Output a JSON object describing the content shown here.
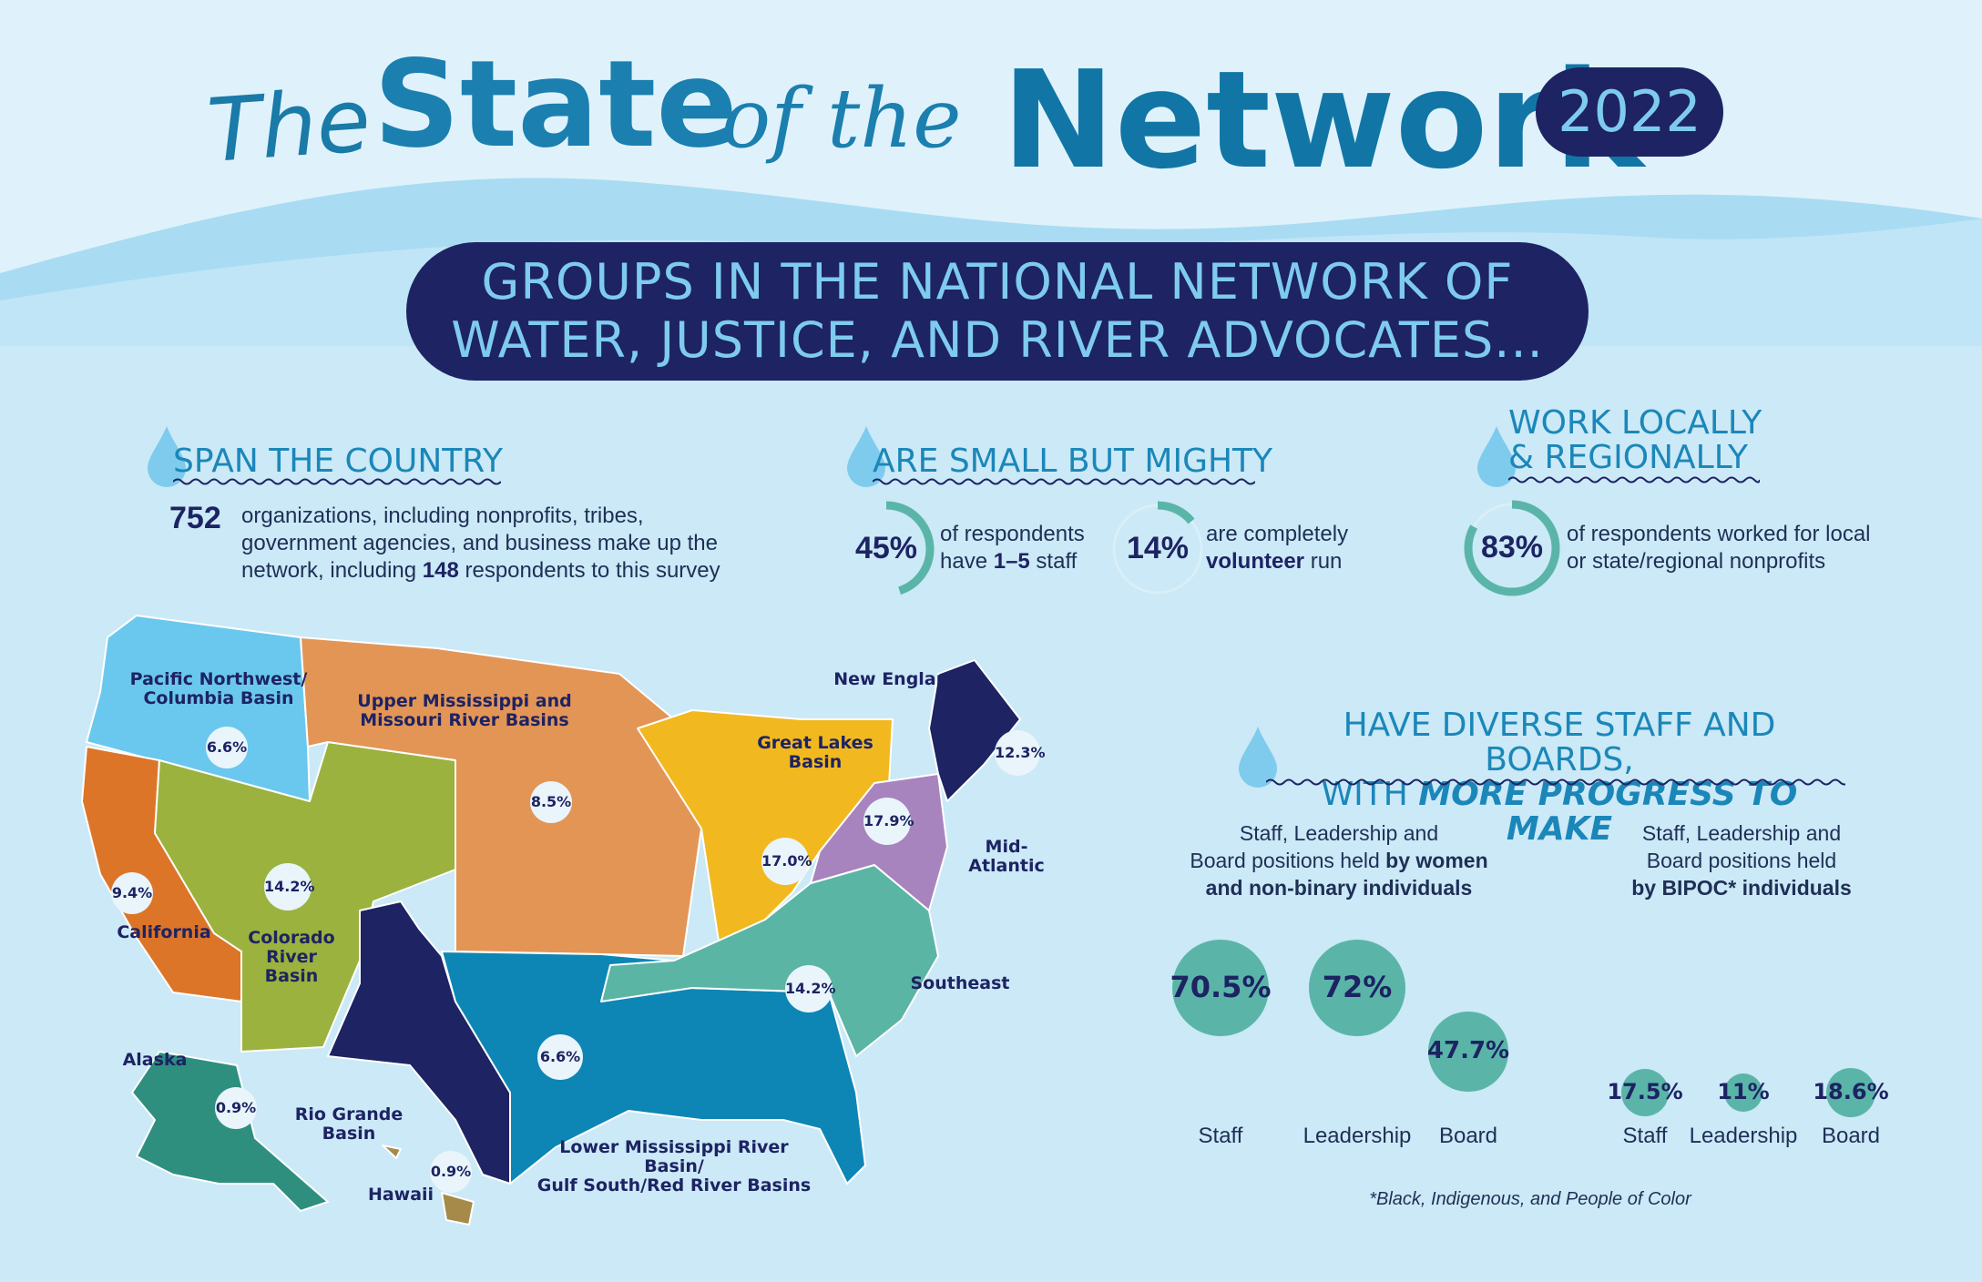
{
  "title": {
    "the": "The",
    "state": "State",
    "of_the": "of the",
    "network": "Network",
    "year": "2022"
  },
  "headline": {
    "line1": "GROUPS IN THE NATIONAL NETWORK OF",
    "line2": "WATER, JUSTICE, AND RIVER ADVOCATES..."
  },
  "span": {
    "title": "SPAN THE COUNTRY",
    "number": "752",
    "line1": "organizations, including nonprofits, tribes,",
    "line2": "government agencies, and business make up the",
    "line3_pre": "network, including ",
    "line3_bold": "148",
    "line3_post": " respondents to this survey"
  },
  "small": {
    "title": "ARE SMALL BUT MIGHTY",
    "stat1": {
      "value": "45%",
      "fraction": 0.45,
      "line1": "of respondents",
      "line2_pre": "have ",
      "line2_bold": "1–5",
      "line2_post": " staff"
    },
    "stat2": {
      "value": "14%",
      "fraction": 0.14,
      "line1": "are completely",
      "line2_bold": "volunteer",
      "line2_post": " run"
    }
  },
  "local": {
    "title_line1": "WORK LOCALLY",
    "title_line2": "& REGIONALLY",
    "value": "83%",
    "fraction": 0.83,
    "line1": "of respondents worked for local",
    "line2": "or state/regional nonprofits"
  },
  "diverse": {
    "title_line1": "HAVE DIVERSE STAFF AND BOARDS,",
    "title_line2_pre": "WITH ",
    "title_line2_em": "MORE PROGRESS TO MAKE",
    "women": {
      "head1": "Staff, Leadership and",
      "head2_pre": "Board positions held ",
      "head2_bold": "by women",
      "head3_bold": "and non-binary individuals",
      "values": [
        70.5,
        72,
        47.7
      ],
      "labels": [
        "70.5%",
        "72%",
        "47.7%"
      ],
      "categories": [
        "Staff",
        "Leadership",
        "Board"
      ]
    },
    "bipoc": {
      "head1": "Staff, Leadership and",
      "head2": "Board positions held",
      "head3_bold": "by BIPOC* individuals",
      "values": [
        17.5,
        11,
        18.6
      ],
      "labels": [
        "17.5%",
        "11%",
        "18.6%"
      ],
      "categories": [
        "Staff",
        "Leadership",
        "Board"
      ]
    },
    "footnote": "*Black, Indigenous, and People of Color"
  },
  "map": {
    "regions": {
      "pnw": {
        "name_line1": "Pacific Northwest/",
        "name_line2": "Columbia Basin",
        "pct": "6.6%",
        "color": "#6ac8ee"
      },
      "upper_miss": {
        "name_line1": "Upper Mississippi and",
        "name_line2": "Missouri River Basins",
        "pct": "8.5%",
        "color": "#e39556"
      },
      "great_lakes": {
        "name_line1": "Great Lakes",
        "name_line2": "Basin",
        "pct": "17.0%",
        "color": "#f2b820"
      },
      "new_england": {
        "name": "New England",
        "pct": "12.3%",
        "color": "#1d2363"
      },
      "mid_atlantic": {
        "name": "Mid-Atlantic",
        "pct": "17.9%",
        "color": "#a884be"
      },
      "california": {
        "name": "California",
        "pct": "9.4%",
        "color": "#dd7528"
      },
      "colorado": {
        "name_line1": "Colorado",
        "name_line2": "River Basin",
        "pct": "14.2%",
        "color": "#9bb23e"
      },
      "southeast": {
        "name": "Southeast",
        "pct": "14.2%",
        "color": "#5bb5a4"
      },
      "lower_miss": {
        "name_line1": "Lower Mississippi River Basin/",
        "name_line2": "Gulf South/Red River Basins",
        "pct": "6.6%",
        "color": "#0d86b5"
      },
      "rio_grande": {
        "name_line1": "Rio Grande",
        "name_line2": "Basin",
        "color": "#1d2363"
      },
      "alaska": {
        "name": "Alaska",
        "pct": "0.9%",
        "color": "#2e8f7e"
      },
      "hawaii": {
        "name": "Hawaii",
        "pct": "0.9%",
        "color": "#a58a4a"
      }
    }
  },
  "colors": {
    "navy": "#1d2363",
    "teal": "#5ab5a8",
    "blue": "#1b87b9",
    "sky": "#7ecbee"
  }
}
